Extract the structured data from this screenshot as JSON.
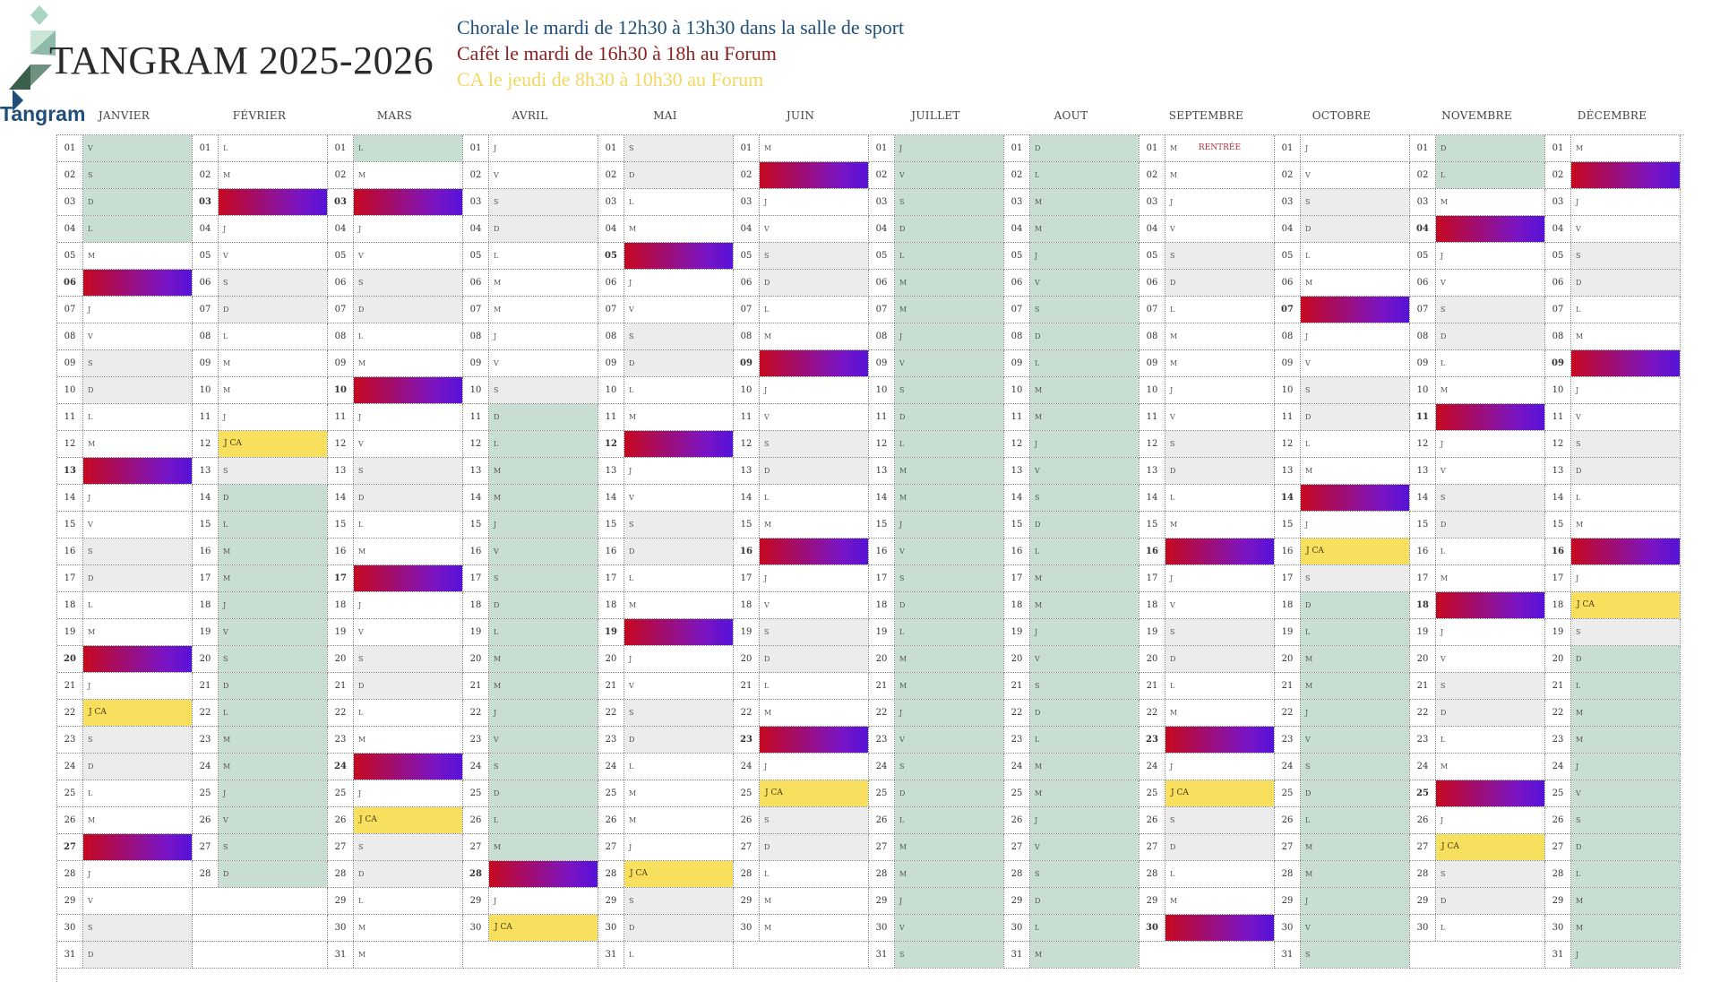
{
  "header": {
    "brand_title": "TANGRAM 2025-2026",
    "logo_text": "Tangram",
    "info_lines": [
      {
        "text": "Chorale le mardi de 12h30 à 13h30 dans la salle de sport"
      },
      {
        "text": "Cafêt le mardi de 16h30 à 18h au Forum"
      },
      {
        "text": "CA le jeudi de 8h30 à 10h30 au Forum"
      }
    ]
  },
  "colors": {
    "event_gradient_start": "#c6081f",
    "event_gradient_end": "#5612d8",
    "ca_highlight": "#f8df5e",
    "holiday": "#c9ded2",
    "weekend": "#ececec",
    "chorale_text": "#1f4e79",
    "cafet_text": "#8b1e1e",
    "ca_text": "#f2d860"
  },
  "calendar": {
    "months": [
      {
        "name": "JANVIER",
        "first_weekday": 4,
        "days": 31,
        "holidays": [
          1,
          2,
          3,
          4
        ],
        "events": [
          6,
          13,
          20,
          27
        ],
        "ca_days": [
          22
        ],
        "notes": {
          "22": "J CA"
        }
      },
      {
        "name": "FÉVRIER",
        "first_weekday": 0,
        "days": 28,
        "holidays": [
          14,
          15,
          16,
          17,
          18,
          19,
          20,
          21,
          22,
          23,
          24,
          25,
          26,
          27,
          28
        ],
        "events": [
          3
        ],
        "ca_days": [
          12
        ],
        "notes": {
          "12": "J CA"
        }
      },
      {
        "name": "MARS",
        "first_weekday": 0,
        "days": 31,
        "holidays": [
          1
        ],
        "events": [
          3,
          10,
          17,
          24
        ],
        "ca_days": [
          26
        ],
        "notes": {
          "26": "J CA"
        }
      },
      {
        "name": "AVRIL",
        "first_weekday": 3,
        "days": 30,
        "holidays": [
          11,
          12,
          13,
          14,
          15,
          16,
          17,
          18,
          19,
          20,
          21,
          22,
          23,
          24,
          25,
          26,
          27
        ],
        "events": [
          28
        ],
        "ca_days": [
          30
        ],
        "notes": {
          "30": "J CA"
        }
      },
      {
        "name": "MAI",
        "first_weekday": 5,
        "days": 31,
        "holidays": [],
        "events": [
          5,
          12,
          19
        ],
        "ca_days": [
          28
        ],
        "notes": {
          "28": "J CA"
        }
      },
      {
        "name": "JUIN",
        "first_weekday": 1,
        "days": 30,
        "holidays": [],
        "events": [
          2,
          9,
          16,
          23
        ],
        "ca_days": [
          25
        ],
        "notes": {
          "25": "J CA"
        }
      },
      {
        "name": "JUILLET",
        "first_weekday": 3,
        "days": 31,
        "holidays": [
          1,
          2,
          3,
          4,
          5,
          6,
          7,
          8,
          9,
          10,
          11,
          12,
          13,
          14,
          15,
          16,
          17,
          18,
          19,
          20,
          21,
          22,
          23,
          24,
          25,
          26,
          27,
          28,
          29,
          30,
          31
        ],
        "events": [],
        "ca_days": [],
        "notes": {}
      },
      {
        "name": "AOUT",
        "first_weekday": 6,
        "days": 31,
        "holidays": [
          1,
          2,
          3,
          4,
          5,
          6,
          7,
          8,
          9,
          10,
          11,
          12,
          13,
          14,
          15,
          16,
          17,
          18,
          19,
          20,
          21,
          22,
          23,
          24,
          25,
          26,
          27,
          28,
          29,
          30,
          31
        ],
        "events": [],
        "ca_days": [],
        "notes": {}
      },
      {
        "name": "SEPTEMBRE",
        "first_weekday": 1,
        "days": 30,
        "holidays": [],
        "events": [
          16,
          23,
          30
        ],
        "ca_days": [
          25
        ],
        "notes": {
          "1": "RENTRÉE",
          "25": "J CA"
        }
      },
      {
        "name": "OCTOBRE",
        "first_weekday": 3,
        "days": 31,
        "holidays": [
          18,
          19,
          20,
          21,
          22,
          23,
          24,
          25,
          26,
          27,
          28,
          29,
          30,
          31
        ],
        "events": [
          7,
          14
        ],
        "ca_days": [
          16
        ],
        "notes": {
          "16": "J CA"
        }
      },
      {
        "name": "NOVEMBRE",
        "first_weekday": 6,
        "days": 30,
        "holidays": [
          1,
          2
        ],
        "events": [
          4,
          11,
          18,
          25
        ],
        "ca_days": [
          27
        ],
        "notes": {
          "27": "J CA"
        }
      },
      {
        "name": "DÉCEMBRE",
        "first_weekday": 1,
        "days": 31,
        "holidays": [
          20,
          21,
          22,
          23,
          24,
          25,
          26,
          27,
          28,
          29,
          30,
          31
        ],
        "events": [
          2,
          9,
          16
        ],
        "ca_days": [
          18
        ],
        "notes": {
          "18": "J CA"
        }
      }
    ],
    "weekday_letters": [
      "L",
      "M",
      "M",
      "J",
      "V",
      "S",
      "D"
    ],
    "bold_days": [
      3,
      4,
      5,
      6,
      7,
      8,
      9,
      10,
      11,
      12,
      13,
      14,
      15,
      16,
      17,
      18,
      19,
      20,
      21,
      22,
      23,
      24,
      25,
      26,
      27,
      28,
      29,
      30,
      31
    ]
  }
}
